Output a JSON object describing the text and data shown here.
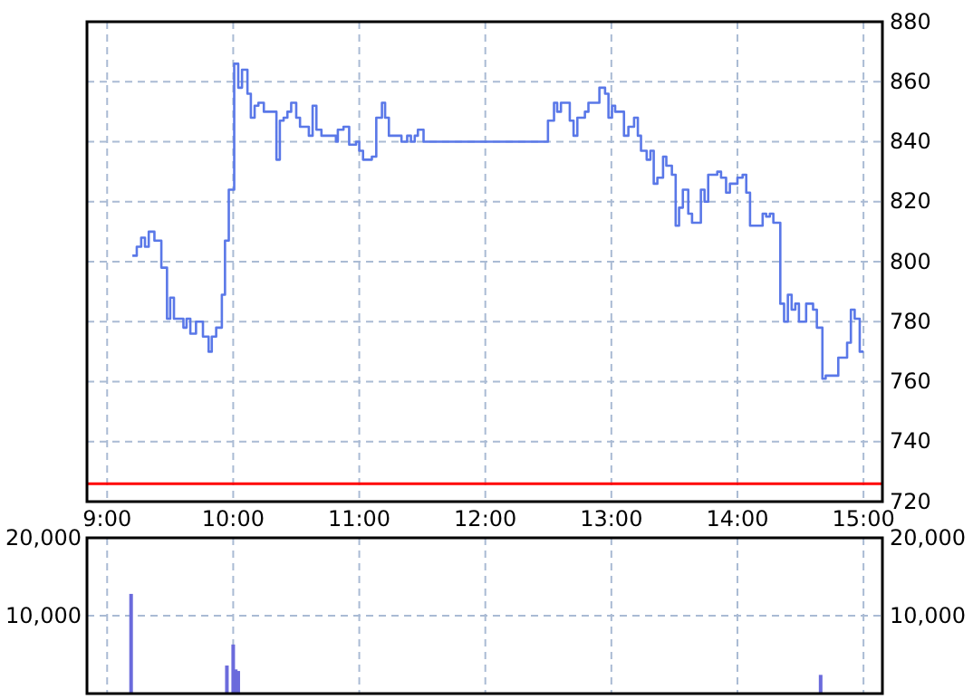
{
  "chart_data": [
    {
      "type": "step",
      "xlim": [
        8.84,
        15.15
      ],
      "ylim": [
        720,
        880
      ],
      "yticks": [
        720,
        740,
        760,
        780,
        800,
        820,
        840,
        860,
        880
      ],
      "xticks": [
        {
          "value": 9,
          "label": "9:00"
        },
        {
          "value": 10,
          "label": "10:00"
        },
        {
          "value": 11,
          "label": "11:00"
        },
        {
          "value": 12,
          "label": "12:00"
        },
        {
          "value": 13,
          "label": "13:00"
        },
        {
          "value": 14,
          "label": "14:00"
        },
        {
          "value": 15,
          "label": "15:00"
        }
      ],
      "grid": true,
      "line_style": "solid",
      "ref_lines": [
        {
          "axis": "y",
          "value": 726,
          "color": "#ff0000"
        }
      ],
      "series": [
        {
          "color": "#5a78e8",
          "x": [
            9.2,
            9.235,
            9.27,
            9.3,
            9.33,
            9.375,
            9.43,
            9.475,
            9.5,
            9.53,
            9.605,
            9.63,
            9.66,
            9.705,
            9.76,
            9.805,
            9.83,
            9.865,
            9.91,
            9.935,
            9.965,
            10.008,
            10.04,
            10.07,
            10.113,
            10.14,
            10.17,
            10.2,
            10.243,
            10.343,
            10.37,
            10.4,
            10.43,
            10.46,
            10.5,
            10.53,
            10.6,
            10.63,
            10.66,
            10.7,
            10.815,
            10.83,
            10.875,
            10.92,
            10.975,
            11,
            11.03,
            11.1,
            11.135,
            11.18,
            11.205,
            11.235,
            11.335,
            11.38,
            11.41,
            11.44,
            11.465,
            11.51,
            12.497,
            12.545,
            12.57,
            12.6,
            12.67,
            12.7,
            12.73,
            12.79,
            12.818,
            12.905,
            12.95,
            12.977,
            13.005,
            13.03,
            13.1,
            13.135,
            13.18,
            13.21,
            13.235,
            13.28,
            13.31,
            13.336,
            13.365,
            13.41,
            13.436,
            13.48,
            13.51,
            13.537,
            13.567,
            13.61,
            13.64,
            13.71,
            13.739,
            13.768,
            13.84,
            13.87,
            13.91,
            13.94,
            14,
            14.041,
            14.07,
            14.1,
            14.2,
            14.228,
            14.257,
            14.285,
            14.34,
            14.37,
            14.4,
            14.43,
            14.459,
            14.488,
            14.545,
            14.6,
            14.63,
            14.674,
            14.7,
            14.8,
            14.87,
            14.9,
            14.93,
            14.97,
            15
          ],
          "values": [
            802,
            805,
            808,
            805,
            810,
            807,
            798,
            781,
            788,
            781,
            778,
            781,
            776,
            780,
            775,
            770,
            775,
            778,
            789,
            807,
            824,
            866,
            858,
            864,
            856,
            848,
            852,
            853,
            850,
            834,
            847,
            848,
            850,
            853,
            848,
            845,
            842,
            852,
            844,
            842,
            840,
            844,
            845,
            839,
            840,
            837,
            834,
            835,
            848,
            853,
            848,
            842,
            840,
            842,
            840,
            842,
            844,
            840,
            847,
            853,
            850,
            853,
            847,
            842,
            848,
            850,
            853,
            858,
            856,
            848,
            852,
            850,
            842,
            845,
            848,
            842,
            837,
            834,
            837,
            826,
            828,
            835,
            832,
            829,
            812,
            818,
            824,
            816,
            813,
            824,
            820,
            829,
            830,
            828,
            823,
            826,
            828,
            829,
            823,
            812,
            816,
            815,
            816,
            813,
            786,
            780,
            789,
            784,
            786,
            780,
            786,
            784,
            778,
            761,
            762,
            768,
            773,
            784,
            781,
            770,
            770
          ]
        }
      ]
    },
    {
      "type": "bar",
      "xlim": [
        8.84,
        15.15
      ],
      "ylim": [
        0,
        20000
      ],
      "yticks": [
        {
          "value": 10000,
          "label": "10,000"
        },
        {
          "value": 20000,
          "label": "20,000"
        }
      ],
      "y2lim": [
        0,
        20000
      ],
      "y2ticks": [
        {
          "value": 10000,
          "label": "10,000"
        },
        {
          "value": 20000,
          "label": "20,000"
        }
      ],
      "xticks": [
        {
          "value": 9,
          "label": null
        },
        {
          "value": 10,
          "label": null
        },
        {
          "value": 11,
          "label": null
        },
        {
          "value": 12,
          "label": null
        },
        {
          "value": 13,
          "label": null
        },
        {
          "value": 14,
          "label": null
        },
        {
          "value": 15,
          "label": null
        }
      ],
      "tick_labels": "y",
      "grid": true,
      "series": [
        {
          "color": "#6b6bdc",
          "x": [
            9.19,
            9.95,
            10,
            10.02,
            10.04,
            14.66
          ],
          "values": [
            12800,
            3600,
            6300,
            3100,
            2900,
            2400
          ]
        }
      ]
    }
  ]
}
